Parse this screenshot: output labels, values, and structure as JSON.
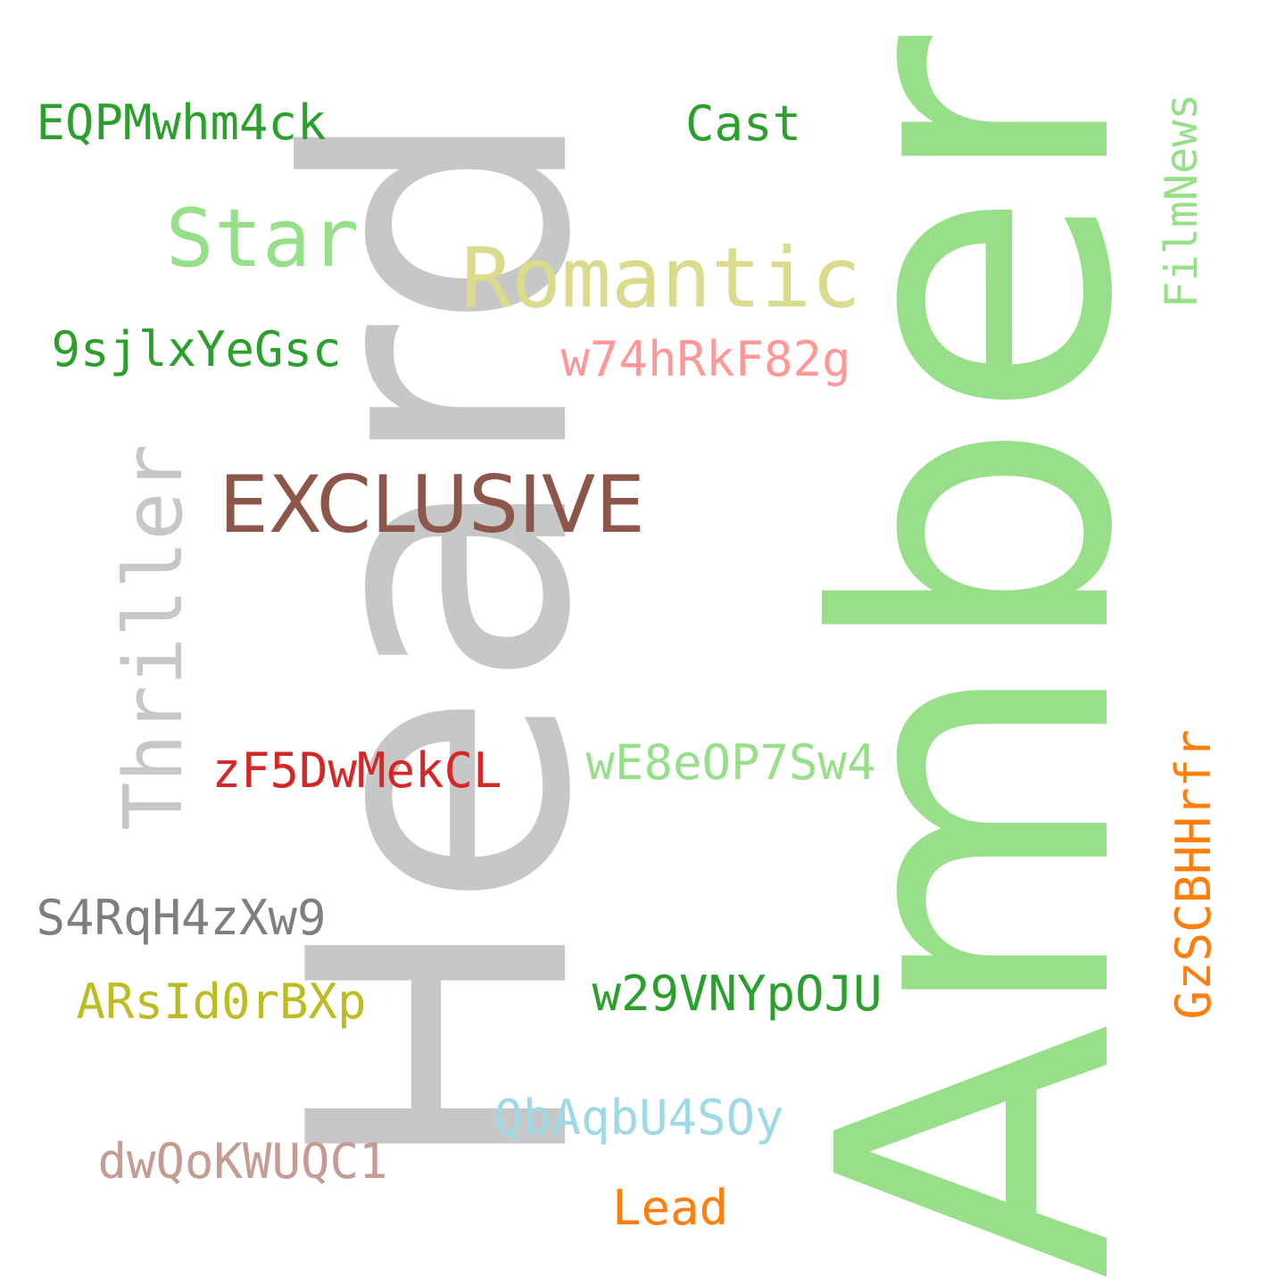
{
  "words": [
    {
      "key": "heard",
      "text": "Heard",
      "color": "#c7c7c7",
      "orientation": "vertical"
    },
    {
      "key": "amber",
      "text": "Amber",
      "color": "#98df8a",
      "orientation": "vertical"
    },
    {
      "key": "exclusive",
      "text": "EXCLUSIVE",
      "color": "#8c564b",
      "orientation": "horizontal"
    },
    {
      "key": "romantic",
      "text": "Romantic",
      "color": "#dbdb8d",
      "orientation": "horizontal"
    },
    {
      "key": "star",
      "text": "Star",
      "color": "#98df8a",
      "orientation": "horizontal"
    },
    {
      "key": "thriller",
      "text": "Thriller",
      "color": "#c7c7c7",
      "orientation": "vertical"
    },
    {
      "key": "eqp",
      "text": "EQPMwhm4ck",
      "color": "#2ca02c",
      "orientation": "horizontal"
    },
    {
      "key": "cast",
      "text": "Cast",
      "color": "#2ca02c",
      "orientation": "horizontal"
    },
    {
      "key": "filmnews",
      "text": "FilmNews",
      "color": "#98df8a",
      "orientation": "vertical"
    },
    {
      "key": "9sj",
      "text": "9sjlxYeGsc",
      "color": "#2ca02c",
      "orientation": "horizontal"
    },
    {
      "key": "w74",
      "text": "w74hRkF82g",
      "color": "#ff9896",
      "orientation": "horizontal"
    },
    {
      "key": "zf5",
      "text": "zF5DwMekCL",
      "color": "#d62728",
      "orientation": "horizontal"
    },
    {
      "key": "we8",
      "text": "wE8eOP7Sw4",
      "color": "#98df8a",
      "orientation": "horizontal"
    },
    {
      "key": "s4r",
      "text": "S4RqH4zXw9",
      "color": "#7f7f7f",
      "orientation": "horizontal"
    },
    {
      "key": "gzs",
      "text": "GzSCBHHrfr",
      "color": "#ff7f0e",
      "orientation": "vertical"
    },
    {
      "key": "ars",
      "text": "ARsId0rBXp",
      "color": "#bcbd22",
      "orientation": "horizontal"
    },
    {
      "key": "w29",
      "text": "w29VNYpOJU",
      "color": "#2ca02c",
      "orientation": "horizontal"
    },
    {
      "key": "qba",
      "text": "QbAqbU4SOy",
      "color": "#9edae5",
      "orientation": "horizontal"
    },
    {
      "key": "dwq",
      "text": "dwQoKWUQC1",
      "color": "#c49c94",
      "orientation": "horizontal"
    },
    {
      "key": "lead",
      "text": "Lead",
      "color": "#ff7f0e",
      "orientation": "horizontal"
    }
  ]
}
